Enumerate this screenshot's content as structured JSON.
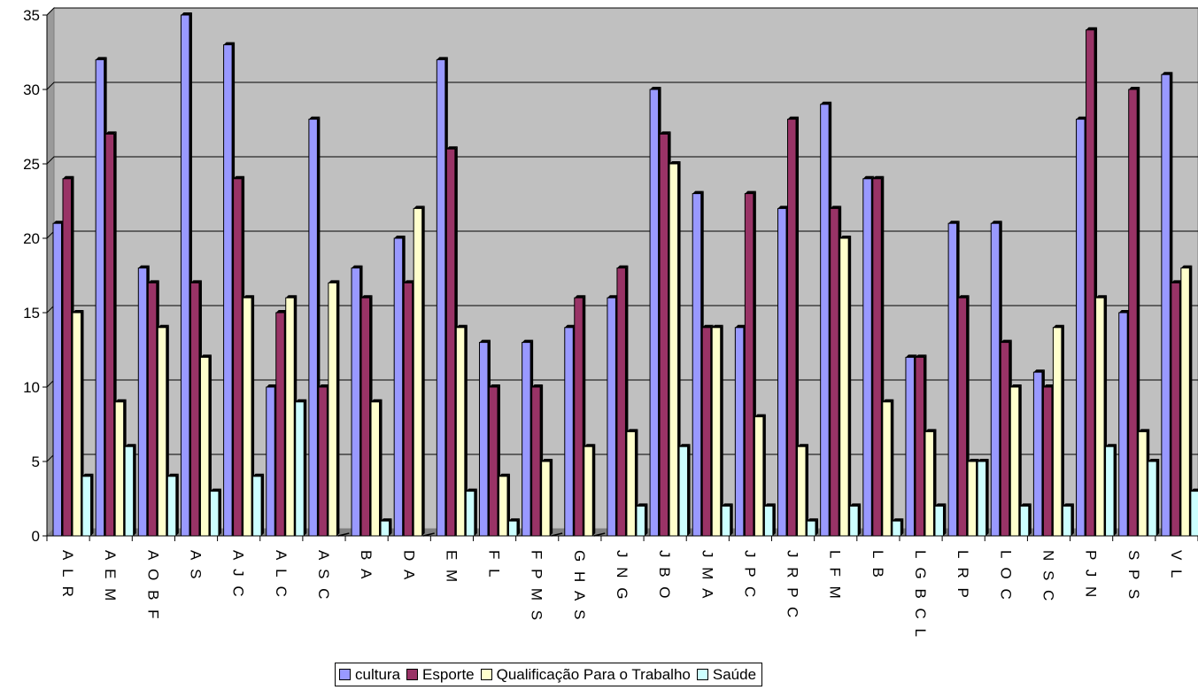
{
  "chart_data": {
    "type": "bar",
    "categories": [
      "A L R",
      "A E M",
      "A O B F",
      "A S",
      "A J C",
      "A L C",
      "A S C",
      "B A",
      "D A",
      "E M",
      "F L",
      "F P M S",
      "G H A S",
      "J N G",
      "J B O",
      "J M A",
      "J P C",
      "J R P C",
      "L F M",
      "L B",
      "L G B C L",
      "L R P",
      "L O C",
      "N S C",
      "P J N",
      "S P S",
      "V L"
    ],
    "series": [
      {
        "name": "cultura",
        "color": "#9999ff",
        "values": [
          21,
          32,
          18,
          35,
          33,
          10,
          28,
          18,
          20,
          32,
          13,
          13,
          14,
          16,
          30,
          23,
          14,
          22,
          29,
          24,
          12,
          21,
          21,
          11,
          28,
          15,
          31
        ]
      },
      {
        "name": "Esporte",
        "color": "#993366",
        "values": [
          24,
          27,
          17,
          17,
          24,
          15,
          10,
          16,
          17,
          26,
          10,
          10,
          16,
          18,
          27,
          14,
          23,
          28,
          22,
          24,
          12,
          16,
          13,
          10,
          34,
          30,
          17
        ]
      },
      {
        "name": "Qualificação Para o Trabalho",
        "color": "#ffffcc",
        "values": [
          15,
          9,
          14,
          12,
          16,
          16,
          17,
          9,
          22,
          14,
          4,
          5,
          6,
          7,
          25,
          14,
          8,
          6,
          20,
          9,
          7,
          5,
          10,
          14,
          16,
          7,
          18
        ]
      },
      {
        "name": "Saúde",
        "color": "#ccffff",
        "values": [
          4,
          6,
          4,
          3,
          4,
          9,
          0,
          1,
          0,
          3,
          1,
          0,
          0,
          2,
          6,
          2,
          2,
          1,
          2,
          1,
          2,
          5,
          2,
          2,
          6,
          5,
          3
        ]
      }
    ],
    "ylim": [
      0,
      35
    ],
    "yticks": [
      "0",
      "5",
      "10",
      "15",
      "20",
      "25",
      "30",
      "35"
    ],
    "grid": true,
    "legend": "bottom",
    "plot_background": "#c0c0c0"
  }
}
